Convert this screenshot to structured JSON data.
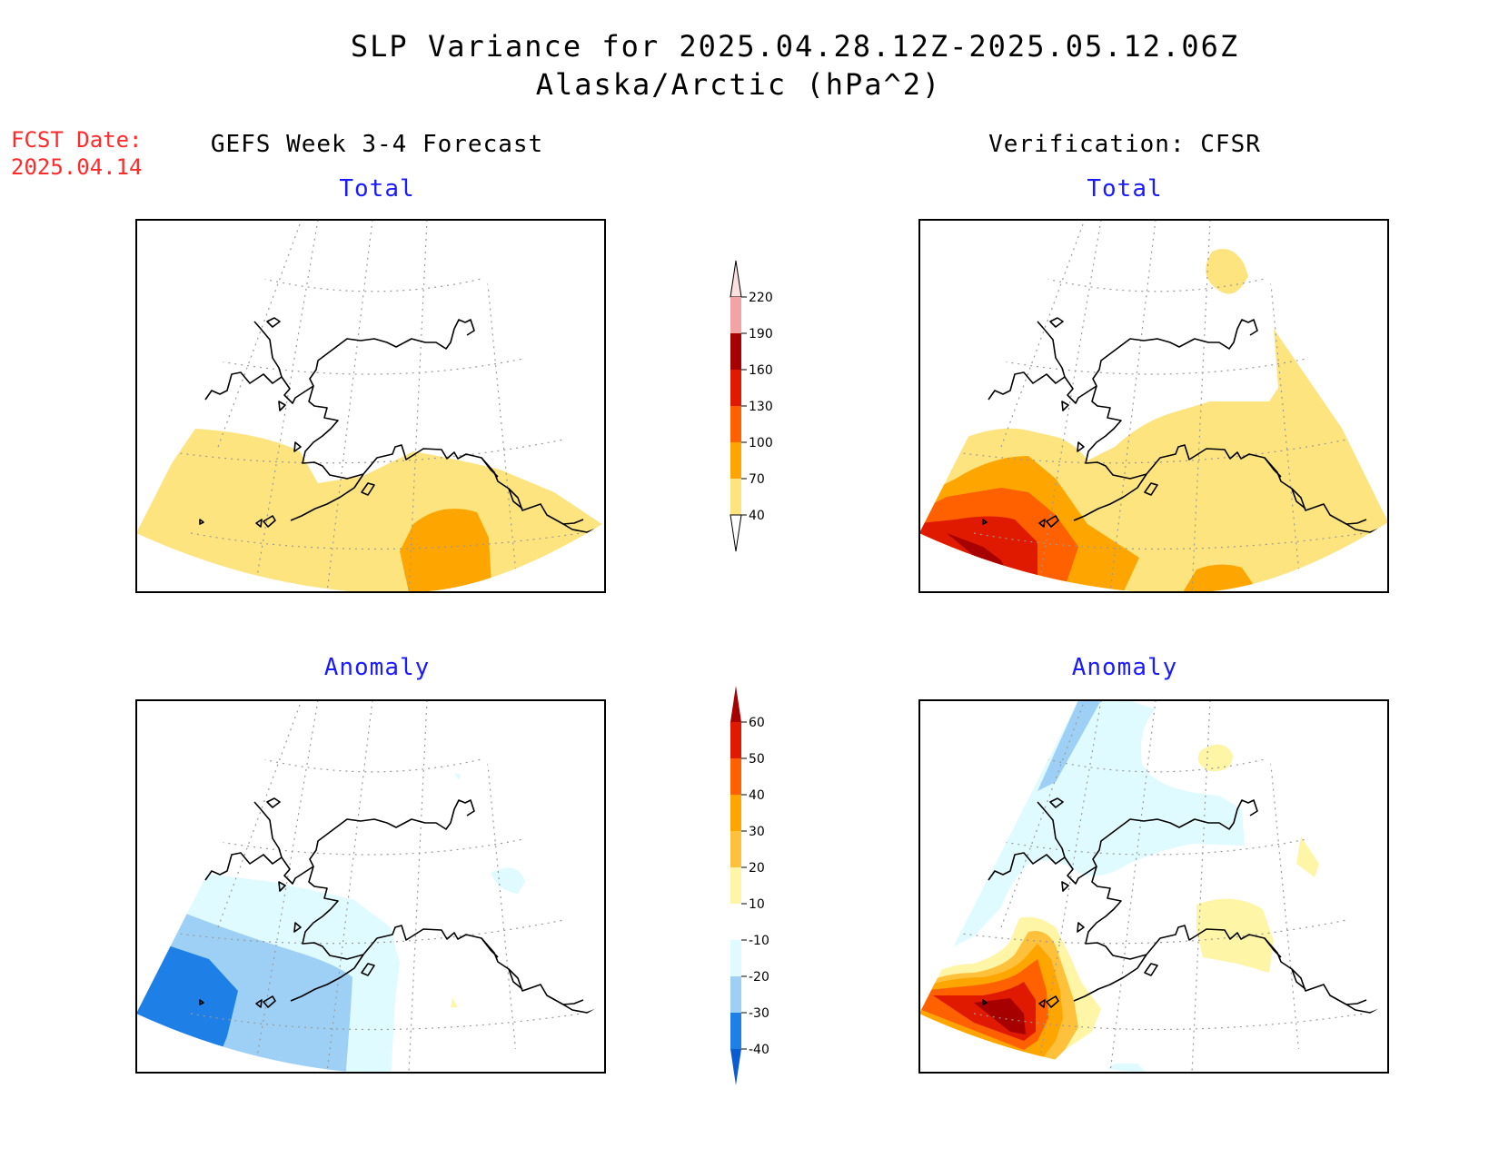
{
  "title": {
    "line1": "SLP Variance for 2025.04.28.12Z-2025.05.12.06Z",
    "line2": "Alaska/Arctic (hPa^2)"
  },
  "forecast_date": {
    "label": "FCST Date:",
    "value": "2025.04.14"
  },
  "columns": {
    "left": "GEFS Week 3-4 Forecast",
    "right": "Verification: CFSR"
  },
  "panels": {
    "forecast_total": "Total",
    "verification_total": "Total",
    "forecast_anomaly": "Anomaly",
    "verification_anomaly": "Anomaly"
  },
  "colorbar_total": {
    "ticks": [
      "220",
      "190",
      "160",
      "130",
      "100",
      "70",
      "40"
    ],
    "colors": {
      "40-70": "#fde47f",
      "70-100": "#ffa500",
      "100-130": "#ff6000",
      "130-160": "#e01a00",
      "160-190": "#a60000",
      "190-220": "#f2a4a4",
      "220+": "#fde0e0"
    }
  },
  "colorbar_anomaly": {
    "ticks": [
      "60",
      "50",
      "40",
      "30",
      "20",
      "10",
      "-10",
      "-20",
      "-30",
      "-40"
    ],
    "colors": {
      "60+": "#a60000",
      "50-60": "#e01a00",
      "40-50": "#ff6000",
      "30-40": "#ffa500",
      "20-30": "#ffc13b",
      "10-20": "#fff5a6",
      "-10-10": "#ffffff",
      "-20--10": "#e0fbff",
      "-30--20": "#9ed0f6",
      "-40--30": "#1e7fe6",
      "-40-": "#0a5cd0"
    }
  }
}
